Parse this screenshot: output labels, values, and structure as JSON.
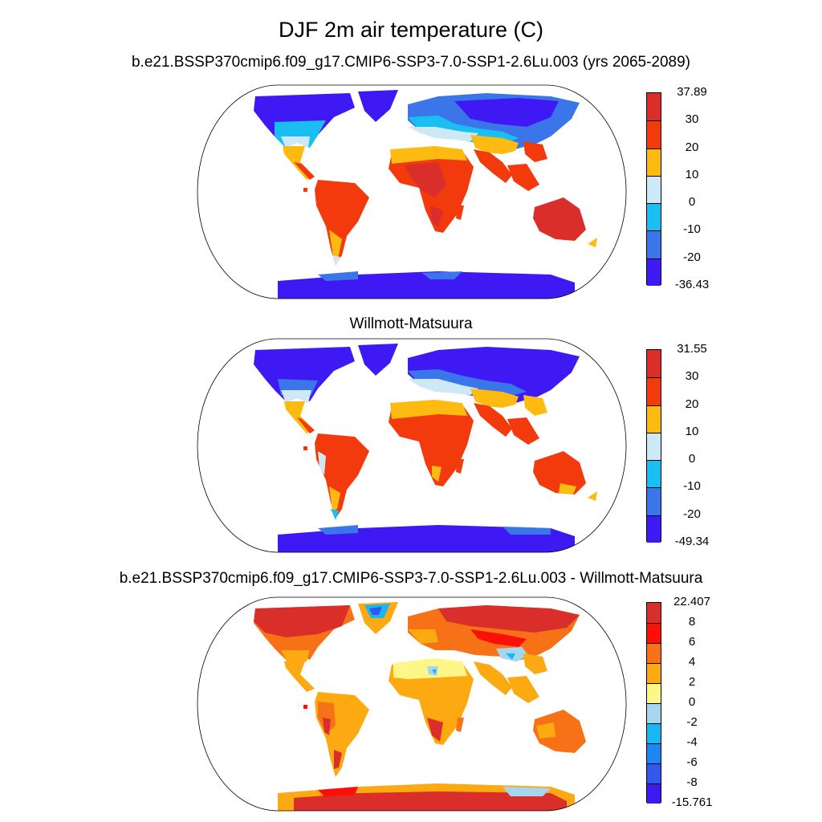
{
  "figure": {
    "title": "DJF 2m air temperature (C)"
  },
  "panels": [
    {
      "title": "b.e21.BSSP370cmip6.f09_g17.CMIP6-SSP3-7.0-SSP1-2.6Lu.003 (yrs 2065-2089)",
      "colorbar": {
        "labels_top_to_bottom": [
          "37.89",
          "30",
          "20",
          "10",
          "0",
          "-10",
          "-20",
          "-36.43"
        ],
        "colors_top_to_bottom": [
          "#d92e2a",
          "#f23a0c",
          "#fdbb12",
          "#cde9f6",
          "#1abff2",
          "#3a76e9",
          "#3f19f4"
        ]
      }
    },
    {
      "title": "Willmott-Matsuura",
      "colorbar": {
        "labels_top_to_bottom": [
          "31.55",
          "30",
          "20",
          "10",
          "0",
          "-10",
          "-20",
          "-49.34"
        ],
        "colors_top_to_bottom": [
          "#d92e2a",
          "#f23a0c",
          "#fdbb12",
          "#cde9f6",
          "#1abff2",
          "#3a76e9",
          "#3f19f4"
        ]
      }
    },
    {
      "title": "b.e21.BSSP370cmip6.f09_g17.CMIP6-SSP3-7.0-SSP1-2.6Lu.003 - Willmott-Matsuura",
      "colorbar": {
        "labels_top_to_bottom": [
          "22.407",
          "8",
          "6",
          "4",
          "2",
          "0",
          "-2",
          "-4",
          "-6",
          "-8",
          "-15.761"
        ],
        "colors_top_to_bottom": [
          "#d92e2a",
          "#fb0f06",
          "#f77217",
          "#fda912",
          "#fef788",
          "#a5d6f0",
          "#19b6f2",
          "#1b87f3",
          "#3157ec",
          "#3f19f4"
        ]
      }
    }
  ]
}
